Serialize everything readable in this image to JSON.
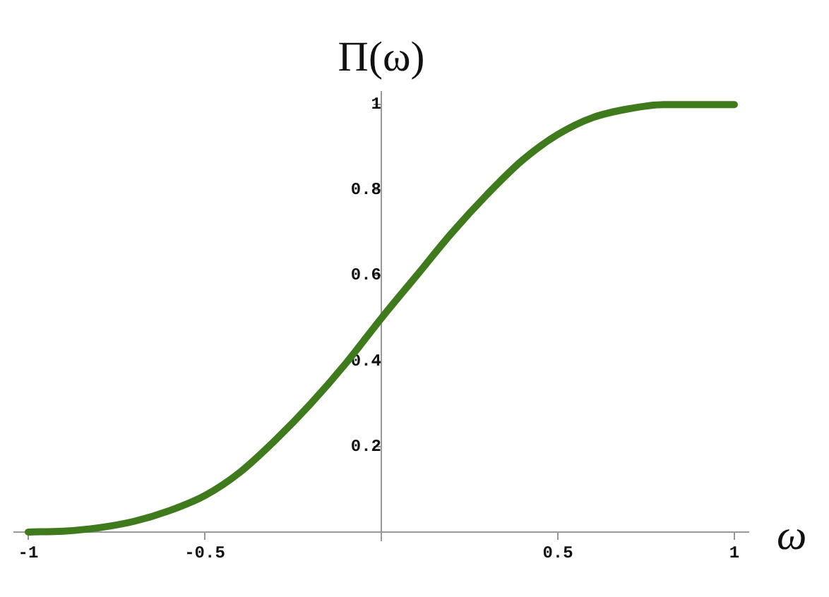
{
  "chart_data": {
    "type": "line",
    "xlabel": "ω",
    "ylabel": "Π(ω)",
    "x": [
      -1,
      -0.9,
      -0.8,
      -0.7,
      -0.6,
      -0.5,
      -0.4,
      -0.3,
      -0.2,
      -0.1,
      0,
      0.1,
      0.2,
      0.3,
      0.4,
      0.5,
      0.6,
      0.7,
      0.8,
      0.9,
      1
    ],
    "series": [
      {
        "color": "#3f7a1c",
        "values": [
          0,
          0.002,
          0.01,
          0.025,
          0.05,
          0.085,
          0.14,
          0.215,
          0.3,
          0.395,
          0.5,
          0.6,
          0.7,
          0.79,
          0.87,
          0.93,
          0.97,
          0.99,
          1,
          1,
          1
        ]
      }
    ],
    "xlim": [
      -1.04,
      1.04
    ],
    "ylim": [
      -0.02,
      1.03
    ],
    "xticks": [
      -1,
      -0.5,
      0.5,
      1
    ],
    "yticks": [
      0.2,
      0.4,
      0.6,
      0.8,
      1
    ],
    "grid": false,
    "legend": false,
    "marker": "none",
    "line_style": "solid"
  }
}
